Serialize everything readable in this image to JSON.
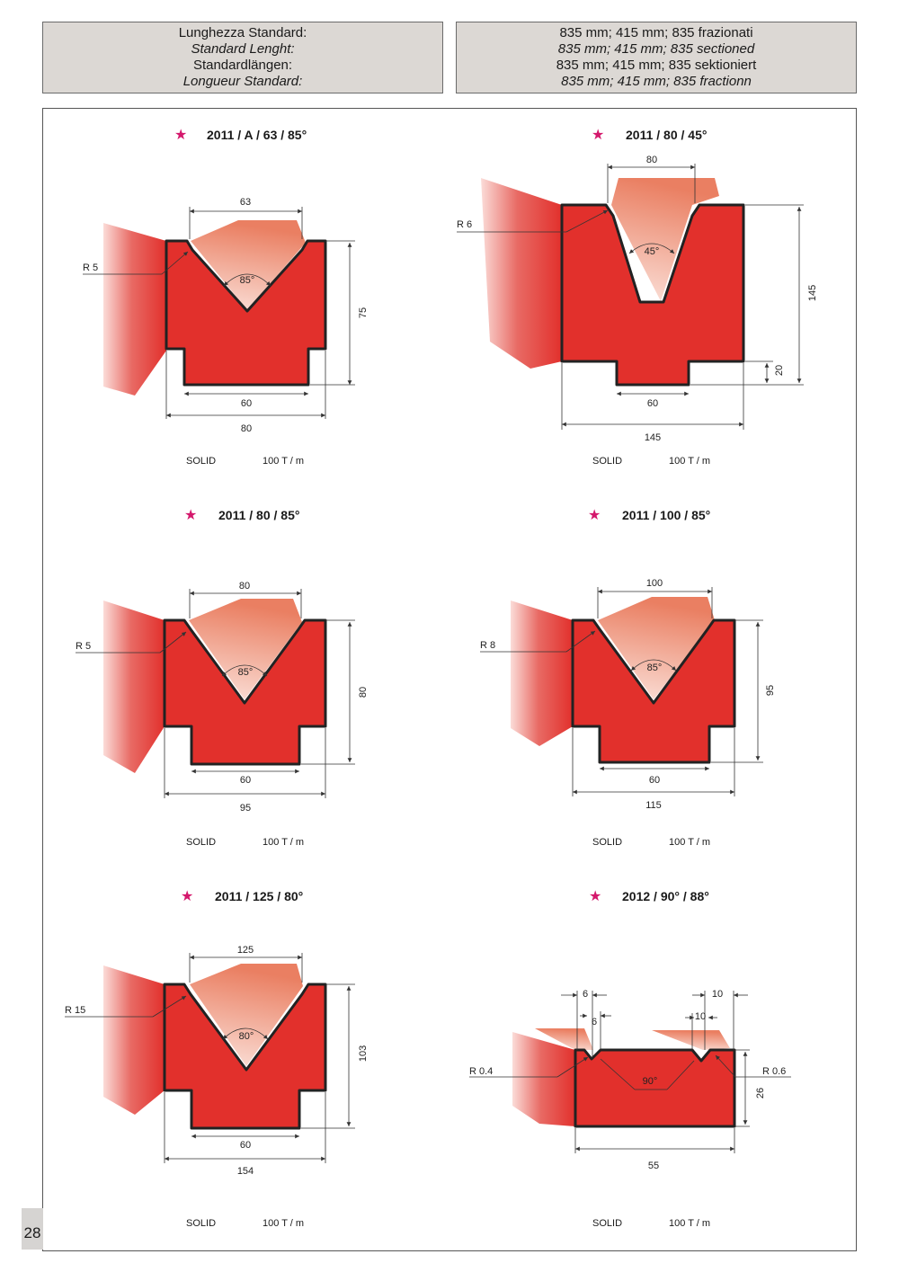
{
  "header": {
    "left": [
      "Lunghezza Standard:",
      "Standard Lenght:",
      "Standardlängen:",
      "Longueur Standard:"
    ],
    "right": [
      "835 mm; 415 mm; 835 frazionati",
      "835 mm; 415 mm; 835 sectioned",
      "835 mm; 415 mm; 835 sektioniert",
      "835 mm; 415 mm; 835 fractionn"
    ]
  },
  "page_number": "28",
  "colors": {
    "die_red": "#e2302c",
    "star_magenta": "#d4186c",
    "header_bg": "#dcd8d4"
  },
  "dies": [
    {
      "title": "2011 / A / 63 / 85°",
      "opening": "63",
      "angle": "85°",
      "radius": "R 5",
      "height": "75",
      "base": "60",
      "width": "80",
      "type": "SOLID",
      "load": "100 T / m"
    },
    {
      "title": "2011 / 80 / 45°",
      "opening": "80",
      "angle": "45°",
      "radius": "R 6",
      "height": "145",
      "step": "20",
      "base": "60",
      "width": "145",
      "type": "SOLID",
      "load": "100 T / m"
    },
    {
      "title": "2011 / 80 / 85°",
      "opening": "80",
      "angle": "85°",
      "radius": "R 5",
      "height": "80",
      "base": "60",
      "width": "95",
      "type": "SOLID",
      "load": "100 T / m"
    },
    {
      "title": "2011 / 100 / 85°",
      "opening": "100",
      "angle": "85°",
      "radius": "R 8",
      "height": "95",
      "base": "60",
      "width": "115",
      "type": "SOLID",
      "load": "100 T / m"
    },
    {
      "title": "2011 / 125 / 80°",
      "opening": "125",
      "angle": "80°",
      "radius": "R 15",
      "height": "103",
      "base": "60",
      "width": "154",
      "type": "SOLID",
      "load": "100 T / m"
    },
    {
      "title": "2012 / 90° / 88°",
      "opening_left": "6",
      "opening_left_inner": "6",
      "opening_right": "10",
      "opening_right_inner": "10",
      "angle": "90°",
      "radius_left": "R 0.4",
      "radius_right": "R 0.6",
      "height": "26",
      "width": "55",
      "type": "SOLID",
      "load": "100 T / m"
    }
  ]
}
